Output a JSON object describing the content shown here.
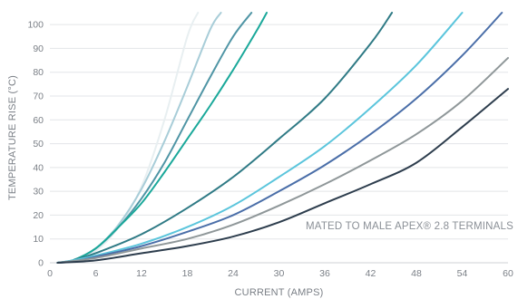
{
  "chart_data": {
    "type": "line",
    "title": "",
    "xlabel": "CURRENT (AMPS)",
    "ylabel": "TEMPERATURE RISE (°C)",
    "xlim": [
      0,
      60
    ],
    "ylim": [
      0,
      105
    ],
    "x_ticks": [
      "0",
      "6",
      "12",
      "18",
      "24",
      "30",
      "36",
      "42",
      "48",
      "54",
      "60"
    ],
    "y_ticks": [
      "0",
      "10",
      "20",
      "30",
      "40",
      "50",
      "60",
      "70",
      "80",
      "90",
      "100"
    ],
    "grid": "horizontal",
    "annotation": "MATED TO MALE APEX® 2.8 TERMINALS",
    "series": [
      {
        "color": "#e8eff1",
        "x": [
          1,
          3,
          6,
          9,
          12,
          15,
          18,
          19.4
        ],
        "y": [
          0,
          1,
          5,
          15,
          32,
          60,
          95,
          105
        ]
      },
      {
        "color": "#a8cdd8",
        "x": [
          1,
          3,
          6,
          9,
          12,
          15,
          18,
          21,
          22.4
        ],
        "y": [
          0,
          1,
          6,
          16,
          31,
          51,
          74,
          98,
          105
        ]
      },
      {
        "color": "#4f95a5",
        "x": [
          1,
          3,
          6,
          9,
          12,
          15,
          18,
          21,
          24,
          26.4
        ],
        "y": [
          0,
          1,
          6,
          15,
          27,
          42,
          60,
          78,
          95,
          105
        ]
      },
      {
        "color": "#1aa89a",
        "x": [
          1,
          3,
          6,
          9,
          12,
          15,
          18,
          21,
          24,
          27,
          28.4
        ],
        "y": [
          0,
          1,
          6,
          15,
          25,
          38,
          52,
          66,
          81,
          97,
          105
        ]
      },
      {
        "color": "#2f7a85",
        "x": [
          1,
          3,
          6,
          12,
          18,
          24,
          30,
          36,
          42,
          44.8
        ],
        "y": [
          0,
          1,
          4,
          12,
          23,
          36,
          52,
          69,
          92,
          105
        ]
      },
      {
        "color": "#5bc5dc",
        "x": [
          1,
          3,
          6,
          12,
          18,
          24,
          30,
          36,
          42,
          48,
          54
        ],
        "y": [
          0,
          1,
          3,
          8,
          15,
          24,
          36,
          49,
          65,
          83,
          105
        ]
      },
      {
        "color": "#4a6ea8",
        "x": [
          1,
          3,
          6,
          12,
          18,
          24,
          30,
          36,
          42,
          48,
          54,
          59.2
        ],
        "y": [
          0,
          0.5,
          2.5,
          7,
          13,
          20,
          30,
          41,
          54,
          69,
          87,
          105
        ]
      },
      {
        "color": "#8f9799",
        "x": [
          1,
          6,
          12,
          18,
          24,
          30,
          36,
          42,
          48,
          54,
          60
        ],
        "y": [
          0,
          2,
          6,
          10,
          16,
          24,
          33,
          43,
          54,
          68,
          86
        ]
      },
      {
        "color": "#2d3d4d",
        "x": [
          1,
          6,
          12,
          18,
          24,
          30,
          36,
          42,
          48,
          54,
          60
        ],
        "y": [
          0,
          1,
          4,
          7,
          11,
          17,
          25,
          33,
          42,
          57,
          73
        ]
      }
    ]
  }
}
